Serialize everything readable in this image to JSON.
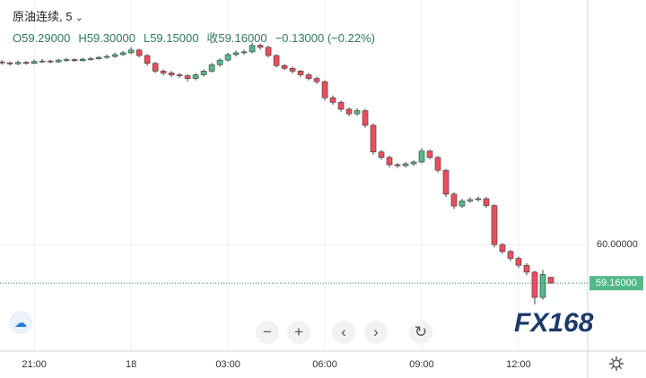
{
  "chart_data": {
    "type": "candlestick",
    "legend": {
      "symbol": "原油连续, 5",
      "open": "O59.29000",
      "high": "H59.30000",
      "low": "L59.15000",
      "close": "收59.16000",
      "change": "−0.13000 (−0.22%)"
    },
    "watermark": "FX168",
    "up_color": "#53b987",
    "down_color": "#eb4d5c",
    "wick_color": "#3a3a3a",
    "xlim": [
      19.94,
      38.14
    ],
    "ylim": [
      57.68,
      65.33
    ],
    "xticks": [
      {
        "value": 21,
        "label": "21:00"
      },
      {
        "value": 24,
        "label": "18"
      },
      {
        "value": 27,
        "label": "03:00"
      },
      {
        "value": 30,
        "label": "06:00"
      },
      {
        "value": 33,
        "label": "09:00"
      },
      {
        "value": 36,
        "label": "12:00"
      }
    ],
    "yticks": [
      {
        "value": 60,
        "label": "60.00000"
      }
    ],
    "last_price": {
      "value": 59.16,
      "label": "59.16000"
    },
    "grid": true,
    "x": [
      20,
      20.25,
      20.5,
      20.75,
      21,
      21.25,
      21.5,
      21.75,
      22,
      22.25,
      22.5,
      22.75,
      23,
      23.25,
      23.5,
      23.75,
      24,
      24.25,
      24.5,
      24.75,
      25,
      25.25,
      25.5,
      25.75,
      26,
      26.25,
      26.5,
      26.75,
      27,
      27.25,
      27.5,
      27.75,
      28,
      28.25,
      28.5,
      28.75,
      29,
      29.25,
      29.5,
      29.75,
      30,
      30.25,
      30.5,
      30.75,
      31,
      31.25,
      31.5,
      31.75,
      32,
      32.25,
      32.5,
      32.75,
      33,
      33.25,
      33.5,
      33.75,
      34,
      34.25,
      34.5,
      34.75,
      35,
      35.25,
      35.5,
      35.75,
      36,
      36.25,
      36.5,
      36.75,
      37
    ],
    "open": [
      63.98,
      63.96,
      63.94,
      63.97,
      63.95,
      63.99,
      64.0,
      63.98,
      64.02,
      64.03,
      64.01,
      64.04,
      64.05,
      64.08,
      64.1,
      64.14,
      64.18,
      64.24,
      64.12,
      63.95,
      63.78,
      63.74,
      63.7,
      63.68,
      63.62,
      63.7,
      63.78,
      63.92,
      64.02,
      64.14,
      64.18,
      64.2,
      64.34,
      64.3,
      64.12,
      63.9,
      63.84,
      63.78,
      63.7,
      63.62,
      63.55,
      63.2,
      63.1,
      62.95,
      62.85,
      62.92,
      62.6,
      62.02,
      61.9,
      61.74,
      61.72,
      61.76,
      61.8,
      62.04,
      61.9,
      61.62,
      61.1,
      60.84,
      60.95,
      60.98,
      61.0,
      60.85,
      60.0,
      59.85,
      59.7,
      59.55,
      59.4,
      58.85,
      59.29
    ],
    "high": [
      64.02,
      63.99,
      64.01,
      64.0,
      64.03,
      64.04,
      64.03,
      64.05,
      64.07,
      64.06,
      64.07,
      64.09,
      64.11,
      64.14,
      64.18,
      64.22,
      64.3,
      64.27,
      64.15,
      63.98,
      63.82,
      63.78,
      63.74,
      63.71,
      63.74,
      63.82,
      63.96,
      64.06,
      64.18,
      64.23,
      64.25,
      64.4,
      64.38,
      64.33,
      64.15,
      63.94,
      63.88,
      63.81,
      63.74,
      63.66,
      63.58,
      63.25,
      63.14,
      62.99,
      62.97,
      62.96,
      62.64,
      62.06,
      61.94,
      61.78,
      61.8,
      61.84,
      62.1,
      62.07,
      61.93,
      61.65,
      61.14,
      61.0,
      61.03,
      61.05,
      61.04,
      60.88,
      60.04,
      59.89,
      59.74,
      59.6,
      59.43,
      59.45,
      59.3
    ],
    "low": [
      63.92,
      63.9,
      63.91,
      63.92,
      63.93,
      63.96,
      63.95,
      63.96,
      63.99,
      63.98,
      63.99,
      64.01,
      64.03,
      64.05,
      64.07,
      64.11,
      64.15,
      64.08,
      63.9,
      63.74,
      63.69,
      63.65,
      63.63,
      63.56,
      63.58,
      63.66,
      63.75,
      63.88,
      63.99,
      64.1,
      64.14,
      64.17,
      64.25,
      64.08,
      63.86,
      63.8,
      63.73,
      63.65,
      63.58,
      63.5,
      63.14,
      63.05,
      62.9,
      62.8,
      62.81,
      62.55,
      61.96,
      61.85,
      61.68,
      61.67,
      61.68,
      61.72,
      61.77,
      61.86,
      61.57,
      61.04,
      60.78,
      60.8,
      60.91,
      60.94,
      60.8,
      59.94,
      59.8,
      59.64,
      59.49,
      59.34,
      58.7,
      58.8,
      59.15
    ],
    "close": [
      63.96,
      63.94,
      63.97,
      63.95,
      63.99,
      64.0,
      63.98,
      64.02,
      64.03,
      64.01,
      64.04,
      64.05,
      64.08,
      64.1,
      64.14,
      64.18,
      64.24,
      64.12,
      63.95,
      63.78,
      63.74,
      63.7,
      63.68,
      63.62,
      63.7,
      63.78,
      63.92,
      64.02,
      64.14,
      64.18,
      64.2,
      64.34,
      64.3,
      64.12,
      63.9,
      63.84,
      63.78,
      63.7,
      63.62,
      63.55,
      63.2,
      63.1,
      62.95,
      62.85,
      62.92,
      62.6,
      62.02,
      61.9,
      61.74,
      61.72,
      61.76,
      61.8,
      62.04,
      61.9,
      61.62,
      61.1,
      60.84,
      60.95,
      60.98,
      61.0,
      60.85,
      60.0,
      59.85,
      59.7,
      59.55,
      59.4,
      58.85,
      59.35,
      59.16
    ]
  }
}
